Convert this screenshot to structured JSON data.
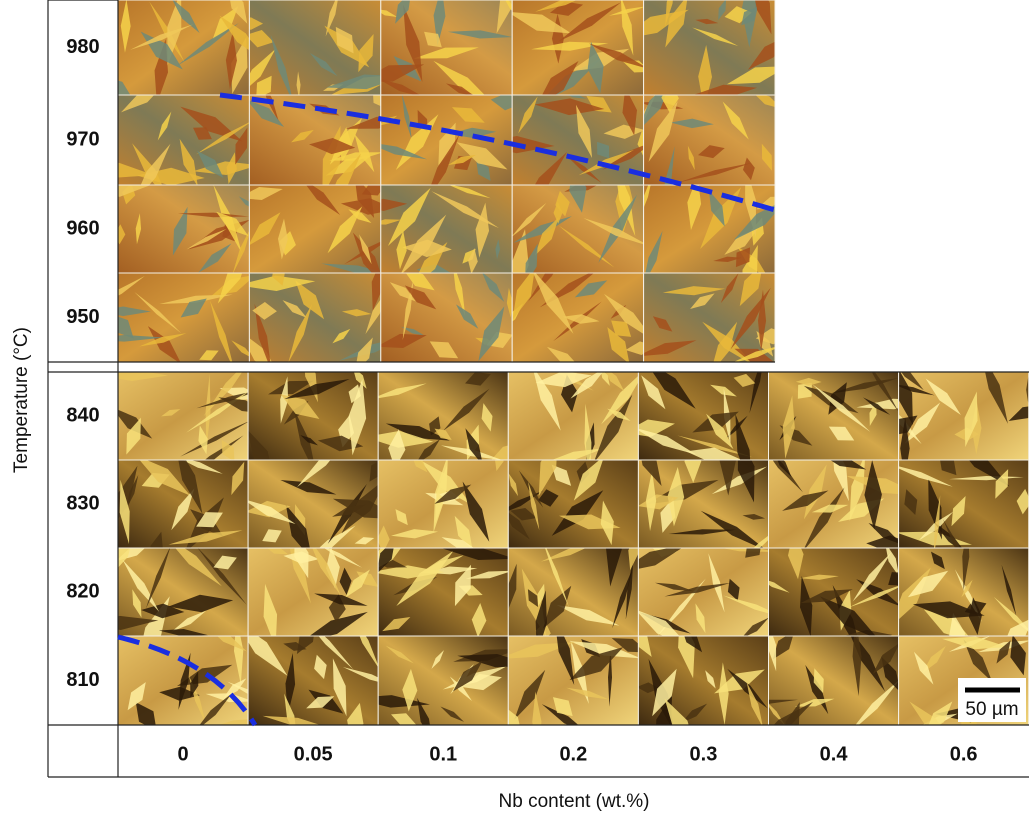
{
  "figure": {
    "y_axis_label": "Temperature (°C)",
    "x_axis_label": "Nb content (wt.%)",
    "top_block_rows": [
      "980",
      "970",
      "960",
      "950"
    ],
    "bottom_block_rows": [
      "840",
      "830",
      "820",
      "810"
    ],
    "columns": [
      "0",
      "0.05",
      "0.1",
      "0.2",
      "0.3",
      "0.4",
      "0.6"
    ],
    "scale_bar": "50 µm"
  }
}
